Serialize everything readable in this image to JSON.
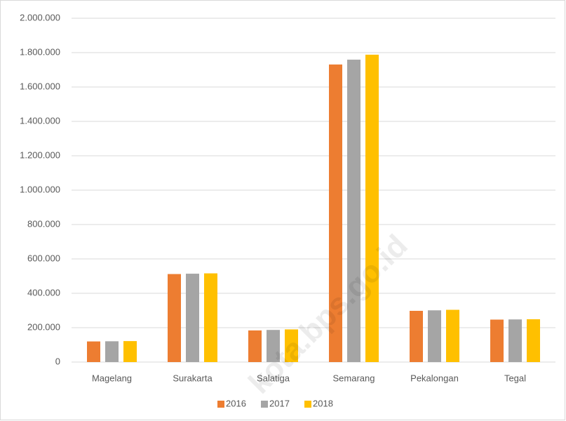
{
  "chart_data": {
    "type": "bar",
    "categories": [
      "Magelang",
      "Surakarta",
      "Salatiga",
      "Semarang",
      "Pekalongan",
      "Tegal"
    ],
    "series": [
      {
        "name": "2016",
        "color": "#ED7D31",
        "values": [
          120000,
          512000,
          184000,
          1731000,
          298000,
          247000
        ]
      },
      {
        "name": "2017",
        "color": "#A5A5A5",
        "values": [
          121000,
          514000,
          187000,
          1759000,
          301000,
          248000
        ]
      },
      {
        "name": "2018",
        "color": "#FFC000",
        "values": [
          122000,
          516000,
          190000,
          1788000,
          304000,
          249000
        ]
      }
    ],
    "ylim": [
      0,
      2000000
    ],
    "yticks": [
      0,
      {
        "value": 200000,
        "label": "200.000"
      },
      {
        "value": 400000,
        "label": "400.000"
      },
      {
        "value": 600000,
        "label": "600.000"
      },
      {
        "value": 800000,
        "label": "800.000"
      },
      {
        "value": 1000000,
        "label": "1.000.000"
      },
      {
        "value": 1200000,
        "label": "1.200.000"
      },
      {
        "value": 1400000,
        "label": "1.400.000"
      },
      {
        "value": 1600000,
        "label": "1.600.000"
      },
      {
        "value": 1800000,
        "label": "1.800.000"
      },
      {
        "value": 2000000,
        "label": "2.000.000"
      }
    ],
    "grid": true,
    "legend": "bottom",
    "watermark": "kota.bps.go.id"
  }
}
